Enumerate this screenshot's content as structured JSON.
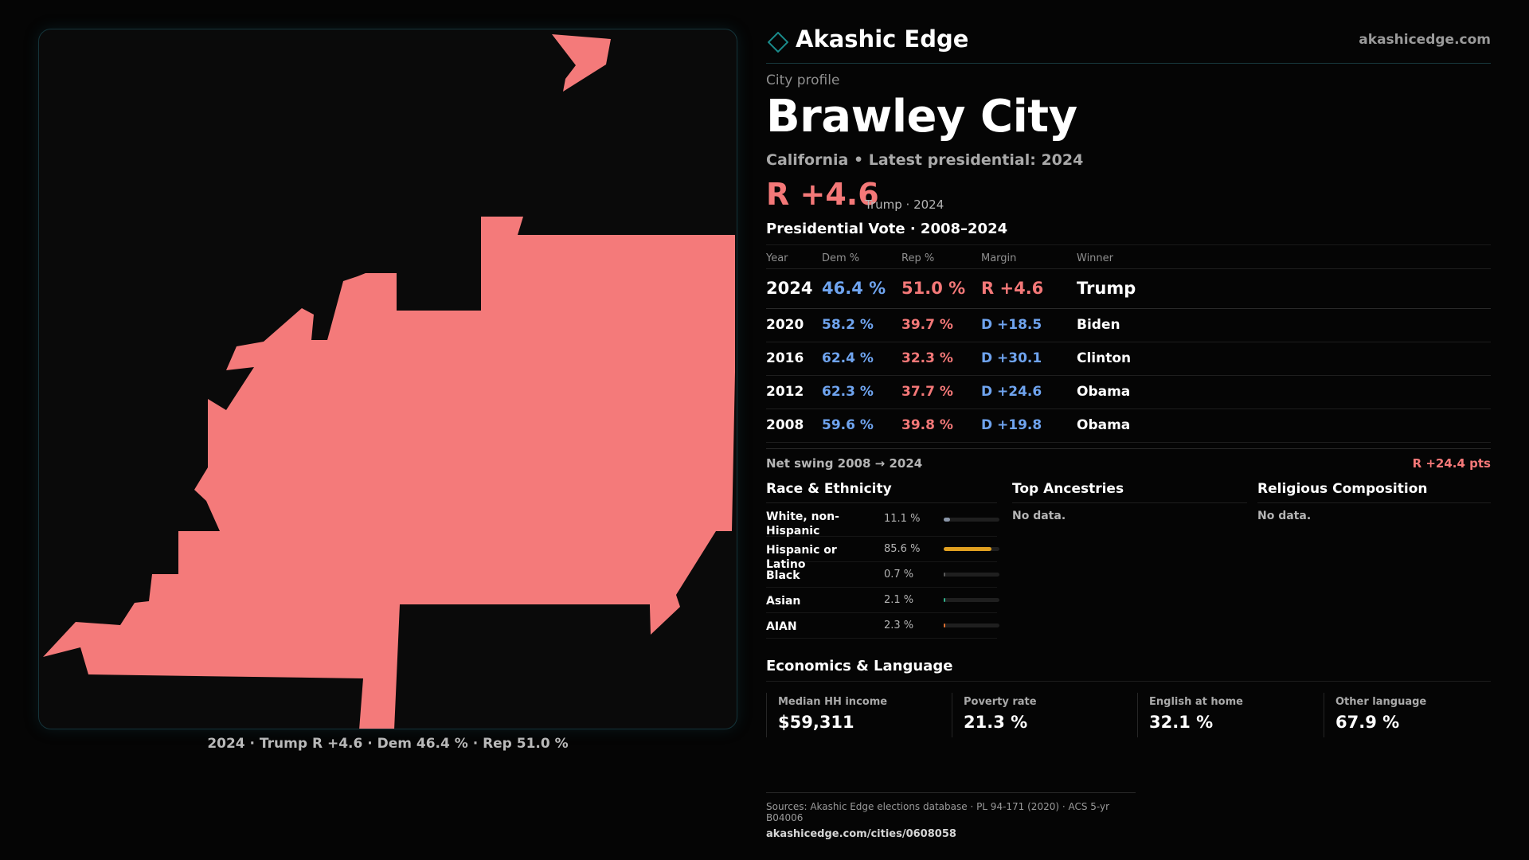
{
  "brand": {
    "name": "Akashic Edge",
    "url": "akashicedge.com",
    "accent": "#1a8a8a"
  },
  "profile": {
    "kicker": "City profile",
    "title": "Brawley City",
    "subtitle": "California • Latest presidential: 2024",
    "margin": "R +4.6",
    "margin_note": "Trump · 2024"
  },
  "map": {
    "caption": "2024 · Trump R +4.6 · Dem 46.4 % · Rep 51.0 %",
    "fill_color": "#f47a7a"
  },
  "vote_table": {
    "title": "Presidential Vote · 2008–2024",
    "headers": {
      "year": "Year",
      "dem": "Dem %",
      "rep": "Rep %",
      "margin": "Margin",
      "winner": "Winner"
    },
    "rows": [
      {
        "year": "2024",
        "dem": "46.4 %",
        "rep": "51.0 %",
        "margin": "R +4.6",
        "winner": "Trump"
      },
      {
        "year": "2020",
        "dem": "58.2 %",
        "rep": "39.7 %",
        "margin": "D +18.5",
        "winner": "Biden"
      },
      {
        "year": "2016",
        "dem": "62.4 %",
        "rep": "32.3 %",
        "margin": "D +30.1",
        "winner": "Clinton"
      },
      {
        "year": "2012",
        "dem": "62.3 %",
        "rep": "37.7 %",
        "margin": "D +24.6",
        "winner": "Obama"
      },
      {
        "year": "2008",
        "dem": "59.6 %",
        "rep": "39.8 %",
        "margin": "D +19.8",
        "winner": "Obama"
      }
    ]
  },
  "swing": {
    "label": "Net swing 2008 → 2024",
    "value": "R +24.4 pts"
  },
  "race": {
    "title": "Race & Ethnicity",
    "rows": [
      {
        "label": "White, non-Hispanic",
        "pct": "11.1 %",
        "value": 11.1,
        "color": "#8a96a8"
      },
      {
        "label": "Hispanic or Latino",
        "pct": "85.6 %",
        "value": 85.6,
        "color": "#e0a020"
      },
      {
        "label": "Black",
        "pct": "0.7 %",
        "value": 0.7,
        "color": "#5a5a5a"
      },
      {
        "label": "Asian",
        "pct": "2.1 %",
        "value": 2.1,
        "color": "#2fb08a"
      },
      {
        "label": "AIAN",
        "pct": "2.3 %",
        "value": 2.3,
        "color": "#e07030"
      }
    ]
  },
  "ancestries": {
    "title": "Top Ancestries",
    "empty": "No data."
  },
  "religion": {
    "title": "Religious Composition",
    "empty": "No data."
  },
  "economics": {
    "title": "Economics & Language",
    "cards": [
      {
        "label": "Median HH income",
        "value": "$59,311"
      },
      {
        "label": "Poverty rate",
        "value": "21.3 %"
      },
      {
        "label": "English at home",
        "value": "32.1 %"
      },
      {
        "label": "Other language",
        "value": "67.9 %"
      }
    ]
  },
  "sources": {
    "line": "Sources: Akashic Edge elections database · PL 94-171 (2020) · ACS 5-yr B04006",
    "url": "akashicedge.com/cities/0608058"
  }
}
